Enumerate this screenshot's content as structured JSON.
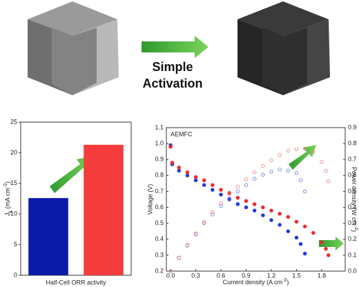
{
  "header": {
    "arrow_label": [
      "Simple",
      "Activation"
    ]
  },
  "chart_data": [
    {
      "type": "bar",
      "ylabel": [
        "J",
        "k",
        " (mA cm",
        "-2",
        ")"
      ],
      "xlabel": "Half-Cell ORR activity",
      "categories": [
        null,
        null
      ],
      "values": [
        12.6,
        21.3
      ],
      "colors": [
        "#0c1aa8",
        "#f43c3c"
      ],
      "ylim": [
        0,
        25
      ],
      "yticks": [
        0,
        5,
        10,
        15,
        20,
        25
      ]
    },
    {
      "type": "scatter",
      "annotation": "AEMFC",
      "xlabel": [
        "Current density (A cm",
        "-2",
        ")"
      ],
      "ylabel": "Voltage (V)",
      "y2label": [
        "Power density (W cm",
        "-2",
        ")"
      ],
      "xlim": [
        -0.05,
        2.08
      ],
      "xticks": [
        {
          "value": 0,
          "label": "0.0"
        },
        0.3,
        0.6,
        0.9,
        1.2,
        1.5,
        1.8
      ],
      "ylim": [
        0.2,
        1.1
      ],
      "yticks": [
        0.2,
        0.3,
        0.4,
        0.5,
        0.6,
        0.7,
        0.8,
        0.9,
        {
          "value": 1,
          "label": "1.0"
        },
        1.1
      ],
      "y2lim": [
        0,
        0.9
      ],
      "y2ticks": [
        {
          "value": 0,
          "label": "0.0"
        },
        0.1,
        0.2,
        0.3,
        0.4,
        0.5,
        0.6,
        0.7,
        0.8,
        0.9
      ],
      "series": [
        {
          "color": "#1f3be0",
          "marker": "filled",
          "x": [
            0,
            0.02,
            0.1,
            0.2,
            0.3,
            0.4,
            0.5,
            0.6,
            0.7,
            0.8,
            0.9,
            1.0,
            1.1,
            1.2,
            1.3,
            1.4,
            1.5,
            1.55,
            1.6
          ],
          "values": [
            0.99,
            0.87,
            0.83,
            0.8,
            0.77,
            0.74,
            0.71,
            0.68,
            0.65,
            0.62,
            0.6,
            0.58,
            0.55,
            0.52,
            0.49,
            0.45,
            0.41,
            0.37,
            0.31
          ]
        },
        {
          "color": "#ee2a2a",
          "marker": "filled",
          "x": [
            0,
            0.02,
            0.1,
            0.2,
            0.3,
            0.4,
            0.5,
            0.6,
            0.7,
            0.8,
            0.9,
            1.0,
            1.1,
            1.2,
            1.3,
            1.4,
            1.5,
            1.6,
            1.7,
            1.8,
            1.85,
            1.88
          ],
          "values": [
            0.98,
            0.88,
            0.85,
            0.82,
            0.79,
            0.77,
            0.74,
            0.71,
            0.69,
            0.66,
            0.64,
            0.62,
            0.6,
            0.58,
            0.56,
            0.54,
            0.51,
            0.48,
            0.44,
            0.38,
            0.34,
            0.3
          ]
        },
        {
          "color": "#6a86dd",
          "marker": "open",
          "axis": "y2",
          "x": [
            0,
            0.1,
            0.2,
            0.3,
            0.4,
            0.5,
            0.6,
            0.7,
            0.8,
            0.9,
            1.0,
            1.1,
            1.2,
            1.3,
            1.4,
            1.5,
            1.55,
            1.6
          ],
          "values": [
            0,
            0.083,
            0.16,
            0.23,
            0.3,
            0.355,
            0.41,
            0.455,
            0.5,
            0.54,
            0.58,
            0.605,
            0.624,
            0.637,
            0.63,
            0.615,
            0.57,
            0.5
          ]
        },
        {
          "color": "#f08a8a",
          "marker": "open",
          "axis": "y2",
          "x": [
            0,
            0.1,
            0.2,
            0.3,
            0.4,
            0.5,
            0.6,
            0.7,
            0.8,
            0.9,
            1.0,
            1.1,
            1.2,
            1.3,
            1.4,
            1.5,
            1.6,
            1.7,
            1.8,
            1.85,
            1.88
          ],
          "values": [
            0,
            0.085,
            0.164,
            0.237,
            0.308,
            0.37,
            0.426,
            0.483,
            0.528,
            0.576,
            0.62,
            0.66,
            0.696,
            0.728,
            0.756,
            0.765,
            0.768,
            0.748,
            0.684,
            0.629,
            0.564
          ]
        }
      ]
    }
  ]
}
